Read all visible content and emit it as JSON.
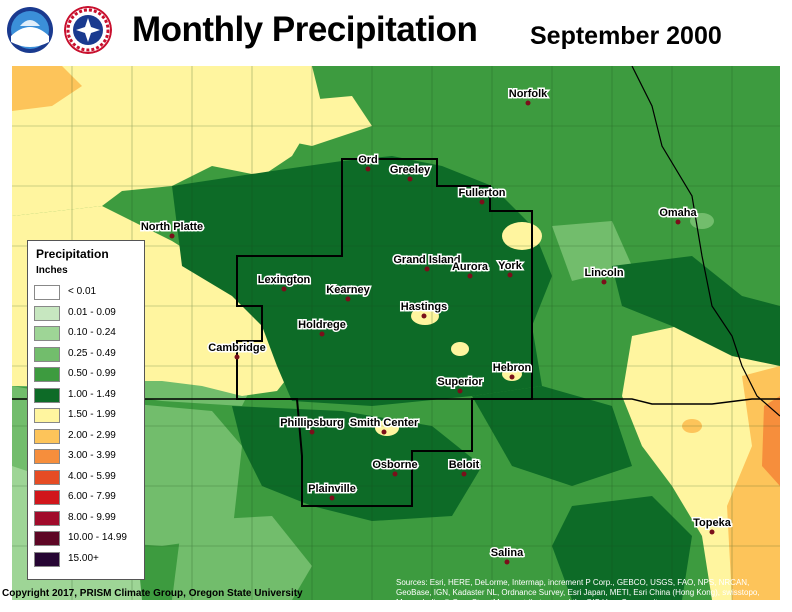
{
  "header": {
    "title": "Monthly Precipitation",
    "subtitle": "September 2000",
    "logo_left": "noaa-logo",
    "logo_right": "nws-logo"
  },
  "legend": {
    "title": "Precipitation",
    "units": "Inches",
    "items": [
      {
        "label": "< 0.01",
        "color": "#ffffff"
      },
      {
        "label": "0.01 - 0.09",
        "color": "#c7e7c0"
      },
      {
        "label": "0.10 - 0.24",
        "color": "#9ed596"
      },
      {
        "label": "0.25 - 0.49",
        "color": "#72bd6c"
      },
      {
        "label": "0.50 - 0.99",
        "color": "#3d9b3f"
      },
      {
        "label": "1.00 - 1.49",
        "color": "#0d6b27"
      },
      {
        "label": "1.50 - 1.99",
        "color": "#fff59f"
      },
      {
        "label": "2.00 - 2.99",
        "color": "#fdc45a"
      },
      {
        "label": "3.00 - 3.99",
        "color": "#f68e3c"
      },
      {
        "label": "4.00 - 5.99",
        "color": "#e64c24"
      },
      {
        "label": "6.00 - 7.99",
        "color": "#d1161b"
      },
      {
        "label": "8.00 - 9.99",
        "color": "#a10b2b"
      },
      {
        "label": "10.00 - 14.99",
        "color": "#5e0625"
      },
      {
        "label": "15.00+",
        "color": "#260533"
      }
    ]
  },
  "cities": [
    {
      "name": "Norfolk"
    },
    {
      "name": "Ord"
    },
    {
      "name": "Greeley"
    },
    {
      "name": "Fullerton"
    },
    {
      "name": "Omaha"
    },
    {
      "name": "North Platte"
    },
    {
      "name": "Grand Island"
    },
    {
      "name": "Aurora"
    },
    {
      "name": "York"
    },
    {
      "name": "Lincoln"
    },
    {
      "name": "Lexington"
    },
    {
      "name": "Kearney"
    },
    {
      "name": "Hastings"
    },
    {
      "name": "Holdrege"
    },
    {
      "name": "Cambridge"
    },
    {
      "name": "Hebron"
    },
    {
      "name": "Superior"
    },
    {
      "name": "Phillipsburg"
    },
    {
      "name": "Smith Center"
    },
    {
      "name": "Beloit"
    },
    {
      "name": "Osborne"
    },
    {
      "name": "Plainville"
    },
    {
      "name": "Topeka"
    },
    {
      "name": "Salina"
    }
  ],
  "footer": {
    "copyright": "Copyright 2017, PRISM Climate Group, Oregon State University",
    "sources": "Sources: Esri, HERE, DeLorme, Intermap, increment P Corp., GEBCO, USGS, FAO, NPS, NRCAN, GeoBase, IGN, Kadaster NL, Ordnance Survey, Esri Japan, METI, Esri China (Hong Kong), swisstopo, MapmyIndia, © OpenStreetMap contributors, and the GIS User Community"
  }
}
